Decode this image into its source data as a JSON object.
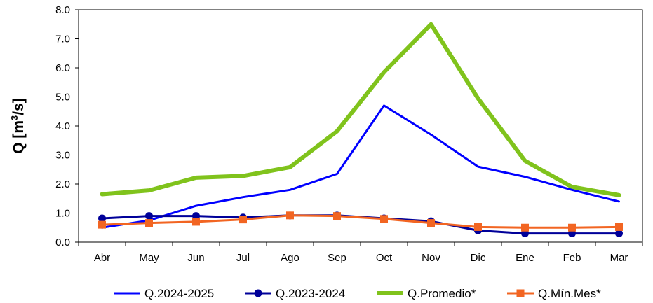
{
  "chart_data": {
    "type": "line",
    "categories": [
      "Abr",
      "May",
      "Jun",
      "Jul",
      "Ago",
      "Sep",
      "Oct",
      "Nov",
      "Dic",
      "Ene",
      "Feb",
      "Mar"
    ],
    "ylabel": "Q [m³/s]",
    "ylabel_main": "Q [m",
    "ylabel_sup": "3",
    "ylabel_end": "/s]",
    "ylim": [
      0,
      8
    ],
    "yticks": [
      "0.0",
      "1.0",
      "2.0",
      "3.0",
      "4.0",
      "5.0",
      "6.0",
      "7.0",
      "8.0"
    ],
    "grid": false,
    "legend_position": "bottom",
    "series": [
      {
        "name": "Q.2024-2025",
        "color": "#0000ff",
        "marker": "none",
        "values": [
          0.5,
          0.75,
          1.25,
          1.55,
          1.8,
          2.35,
          4.7,
          3.7,
          2.6,
          2.25,
          1.8,
          1.4
        ]
      },
      {
        "name": "Q.2023-2024",
        "color": "#000099",
        "marker": "circle",
        "values": [
          0.82,
          0.9,
          0.9,
          0.85,
          0.92,
          0.92,
          0.82,
          0.72,
          0.4,
          0.3,
          0.3,
          0.3
        ]
      },
      {
        "name": "Q.Promedio*",
        "color": "#80c31c",
        "marker": "none",
        "values": [
          1.65,
          1.78,
          2.22,
          2.28,
          2.58,
          3.82,
          5.85,
          7.5,
          4.95,
          2.8,
          1.9,
          1.62
        ]
      },
      {
        "name": "Q.Mín.Mes*",
        "color": "#f26522",
        "marker": "square",
        "values": [
          0.6,
          0.66,
          0.7,
          0.78,
          0.92,
          0.9,
          0.8,
          0.66,
          0.52,
          0.5,
          0.5,
          0.52
        ]
      }
    ]
  }
}
